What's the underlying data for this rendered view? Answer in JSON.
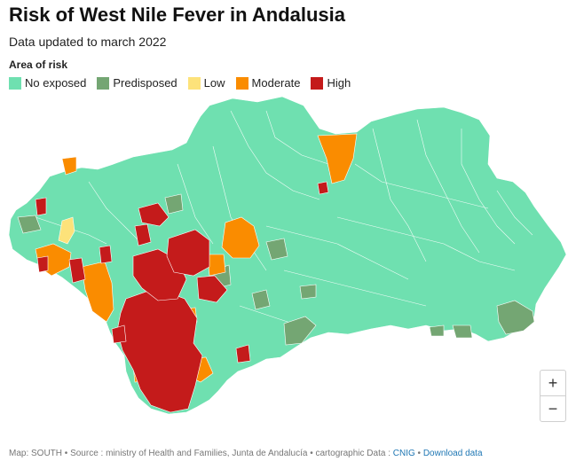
{
  "title": "Risk of West Nile Fever in Andalusia",
  "subtitle": "Data updated to march 2022",
  "legend": {
    "title": "Area of risk",
    "items": [
      {
        "label": "No exposed",
        "color": "#6fe0b0"
      },
      {
        "label": "Predisposed",
        "color": "#74a673"
      },
      {
        "label": "Low",
        "color": "#fde27a"
      },
      {
        "label": "Moderate",
        "color": "#fa8c00"
      },
      {
        "label": "High",
        "color": "#c41b1b"
      }
    ]
  },
  "zoom": {
    "in_label": "+",
    "out_label": "−"
  },
  "footer": {
    "credit": "Map: SOUTH • Source : ministry of Health and Families, Junta de Andalucía • cartographic Data : ",
    "cnig": "CNIG",
    "separator": " • ",
    "download": "Download data"
  }
}
